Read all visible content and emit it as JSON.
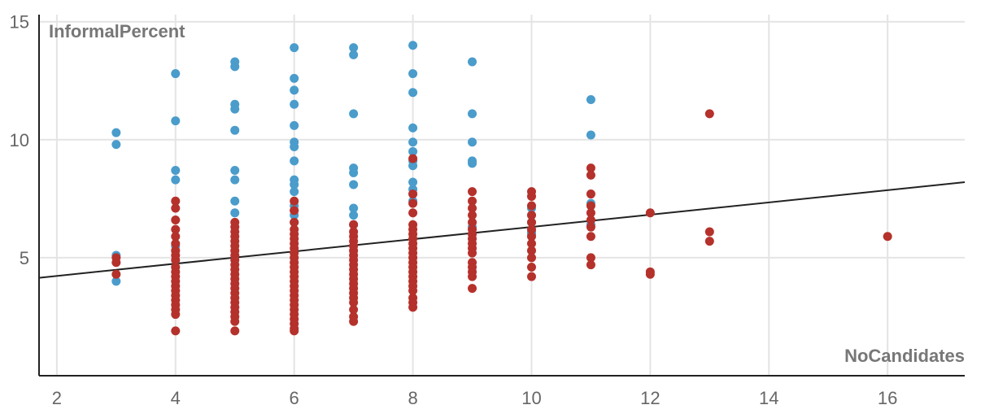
{
  "chart_data": {
    "type": "scatter",
    "title": "",
    "xlabel": "NoCandidates",
    "ylabel": "InformalPercent",
    "xlim": [
      1.7,
      17.3
    ],
    "ylim": [
      0,
      15.3
    ],
    "xticks": [
      2,
      4,
      6,
      8,
      10,
      12,
      14,
      16
    ],
    "yticks": [
      5,
      10,
      15
    ],
    "grid": true,
    "legend": "none",
    "colors": {
      "blue": "#4a9ccb",
      "red": "#b5312b",
      "trend": "#222222",
      "grid": "#e4e4e4",
      "axis": "#222222"
    },
    "series": [
      {
        "color": "blue",
        "points": [
          [
            3,
            10.3
          ],
          [
            3,
            9.8
          ],
          [
            3,
            5.1
          ],
          [
            3,
            4.0
          ],
          [
            4,
            12.8
          ],
          [
            4,
            10.8
          ],
          [
            4,
            8.7
          ],
          [
            4,
            8.3
          ],
          [
            4,
            5.5
          ],
          [
            5,
            13.3
          ],
          [
            5,
            13.1
          ],
          [
            5,
            11.5
          ],
          [
            5,
            11.3
          ],
          [
            5,
            10.4
          ],
          [
            5,
            8.7
          ],
          [
            5,
            8.3
          ],
          [
            5,
            7.4
          ],
          [
            5,
            6.9
          ],
          [
            6,
            13.9
          ],
          [
            6,
            12.6
          ],
          [
            6,
            12.1
          ],
          [
            6,
            11.5
          ],
          [
            6,
            10.6
          ],
          [
            6,
            9.9
          ],
          [
            6,
            9.7
          ],
          [
            6,
            9.1
          ],
          [
            6,
            8.3
          ],
          [
            6,
            8.1
          ],
          [
            6,
            7.8
          ],
          [
            6,
            7.2
          ],
          [
            6,
            7.0
          ],
          [
            6,
            6.8
          ],
          [
            6,
            6.5
          ],
          [
            7,
            13.9
          ],
          [
            7,
            13.6
          ],
          [
            7,
            11.1
          ],
          [
            7,
            8.8
          ],
          [
            7,
            8.6
          ],
          [
            7,
            8.1
          ],
          [
            7,
            7.1
          ],
          [
            7,
            6.8
          ],
          [
            7,
            6.4
          ],
          [
            8,
            14.0
          ],
          [
            8,
            12.8
          ],
          [
            8,
            12.0
          ],
          [
            8,
            10.5
          ],
          [
            8,
            9.9
          ],
          [
            8,
            9.5
          ],
          [
            8,
            9.1
          ],
          [
            8,
            8.9
          ],
          [
            8,
            8.2
          ],
          [
            8,
            7.9
          ],
          [
            8,
            7.7
          ],
          [
            8,
            7.4
          ],
          [
            9,
            13.3
          ],
          [
            9,
            11.1
          ],
          [
            9,
            9.9
          ],
          [
            9,
            9.0
          ],
          [
            9,
            9.1
          ],
          [
            9,
            6.3
          ],
          [
            10,
            7.1
          ],
          [
            10,
            6.8
          ],
          [
            10,
            6.5
          ],
          [
            10,
            6.1
          ],
          [
            10,
            6.0
          ],
          [
            11,
            11.7
          ],
          [
            11,
            10.2
          ],
          [
            11,
            7.3
          ],
          [
            11,
            6.4
          ]
        ]
      },
      {
        "color": "red",
        "points": [
          [
            3,
            5.0
          ],
          [
            3,
            4.8
          ],
          [
            3,
            4.3
          ],
          [
            4,
            7.4
          ],
          [
            4,
            7.1
          ],
          [
            4,
            6.6
          ],
          [
            4,
            6.2
          ],
          [
            4,
            5.9
          ],
          [
            4,
            5.6
          ],
          [
            4,
            5.3
          ],
          [
            4,
            5.1
          ],
          [
            4,
            4.9
          ],
          [
            4,
            4.6
          ],
          [
            4,
            4.4
          ],
          [
            4,
            4.2
          ],
          [
            4,
            4.0
          ],
          [
            4,
            3.8
          ],
          [
            4,
            3.6
          ],
          [
            4,
            3.4
          ],
          [
            4,
            3.2
          ],
          [
            4,
            3.0
          ],
          [
            4,
            2.8
          ],
          [
            4,
            2.6
          ],
          [
            4,
            1.9
          ],
          [
            5,
            6.5
          ],
          [
            5,
            6.3
          ],
          [
            5,
            6.1
          ],
          [
            5,
            5.9
          ],
          [
            5,
            5.7
          ],
          [
            5,
            5.5
          ],
          [
            5,
            5.3
          ],
          [
            5,
            5.1
          ],
          [
            5,
            4.9
          ],
          [
            5,
            4.7
          ],
          [
            5,
            4.5
          ],
          [
            5,
            4.3
          ],
          [
            5,
            4.1
          ],
          [
            5,
            3.9
          ],
          [
            5,
            3.7
          ],
          [
            5,
            3.5
          ],
          [
            5,
            3.3
          ],
          [
            5,
            3.1
          ],
          [
            5,
            2.9
          ],
          [
            5,
            2.7
          ],
          [
            5,
            2.5
          ],
          [
            5,
            2.3
          ],
          [
            5,
            1.9
          ],
          [
            6,
            7.4
          ],
          [
            6,
            7.0
          ],
          [
            6,
            6.5
          ],
          [
            6,
            6.2
          ],
          [
            6,
            6.0
          ],
          [
            6,
            5.8
          ],
          [
            6,
            5.6
          ],
          [
            6,
            5.4
          ],
          [
            6,
            5.2
          ],
          [
            6,
            5.0
          ],
          [
            6,
            4.8
          ],
          [
            6,
            4.6
          ],
          [
            6,
            4.4
          ],
          [
            6,
            4.2
          ],
          [
            6,
            4.0
          ],
          [
            6,
            3.8
          ],
          [
            6,
            3.6
          ],
          [
            6,
            3.4
          ],
          [
            6,
            3.2
          ],
          [
            6,
            3.0
          ],
          [
            6,
            2.8
          ],
          [
            6,
            2.6
          ],
          [
            6,
            2.4
          ],
          [
            6,
            2.2
          ],
          [
            6,
            2.0
          ],
          [
            6,
            1.9
          ],
          [
            7,
            6.4
          ],
          [
            7,
            6.1
          ],
          [
            7,
            5.9
          ],
          [
            7,
            5.7
          ],
          [
            7,
            5.5
          ],
          [
            7,
            5.3
          ],
          [
            7,
            5.1
          ],
          [
            7,
            4.9
          ],
          [
            7,
            4.7
          ],
          [
            7,
            4.5
          ],
          [
            7,
            4.3
          ],
          [
            7,
            4.1
          ],
          [
            7,
            3.9
          ],
          [
            7,
            3.7
          ],
          [
            7,
            3.5
          ],
          [
            7,
            3.3
          ],
          [
            7,
            3.1
          ],
          [
            7,
            2.8
          ],
          [
            7,
            2.5
          ],
          [
            7,
            2.3
          ],
          [
            8,
            9.2
          ],
          [
            8,
            7.7
          ],
          [
            8,
            7.3
          ],
          [
            8,
            6.9
          ],
          [
            8,
            6.4
          ],
          [
            8,
            6.2
          ],
          [
            8,
            6.0
          ],
          [
            8,
            5.8
          ],
          [
            8,
            5.6
          ],
          [
            8,
            5.4
          ],
          [
            8,
            5.2
          ],
          [
            8,
            5.0
          ],
          [
            8,
            4.8
          ],
          [
            8,
            4.6
          ],
          [
            8,
            4.4
          ],
          [
            8,
            4.2
          ],
          [
            8,
            4.0
          ],
          [
            8,
            3.8
          ],
          [
            8,
            3.6
          ],
          [
            8,
            3.3
          ],
          [
            8,
            3.1
          ],
          [
            8,
            2.9
          ],
          [
            9,
            7.8
          ],
          [
            9,
            7.4
          ],
          [
            9,
            7.1
          ],
          [
            9,
            6.8
          ],
          [
            9,
            6.5
          ],
          [
            9,
            6.2
          ],
          [
            9,
            6.0
          ],
          [
            9,
            5.8
          ],
          [
            9,
            5.6
          ],
          [
            9,
            5.4
          ],
          [
            9,
            5.2
          ],
          [
            9,
            4.8
          ],
          [
            9,
            4.6
          ],
          [
            9,
            4.4
          ],
          [
            9,
            4.2
          ],
          [
            9,
            3.7
          ],
          [
            10,
            7.8
          ],
          [
            10,
            7.6
          ],
          [
            10,
            7.2
          ],
          [
            10,
            6.8
          ],
          [
            10,
            6.5
          ],
          [
            10,
            6.2
          ],
          [
            10,
            5.9
          ],
          [
            10,
            5.6
          ],
          [
            10,
            5.3
          ],
          [
            10,
            5.0
          ],
          [
            10,
            4.6
          ],
          [
            10,
            4.2
          ],
          [
            11,
            8.8
          ],
          [
            11,
            8.5
          ],
          [
            11,
            7.7
          ],
          [
            11,
            7.2
          ],
          [
            11,
            6.9
          ],
          [
            11,
            6.6
          ],
          [
            11,
            6.3
          ],
          [
            11,
            5.9
          ],
          [
            11,
            5.0
          ],
          [
            11,
            4.7
          ],
          [
            12,
            6.9
          ],
          [
            12,
            4.4
          ],
          [
            12,
            4.3
          ],
          [
            13,
            11.1
          ],
          [
            13,
            6.1
          ],
          [
            13,
            5.7
          ],
          [
            16,
            5.9
          ]
        ]
      }
    ],
    "trendline": {
      "x": [
        1.7,
        17.3
      ],
      "y": [
        4.15,
        8.2
      ]
    }
  }
}
